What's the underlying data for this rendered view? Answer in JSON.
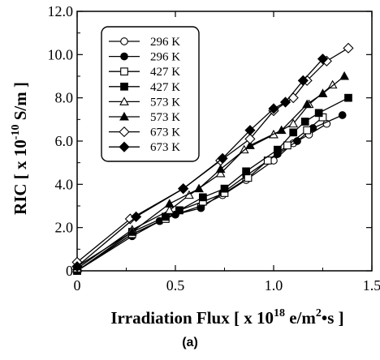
{
  "chart_data": {
    "type": "scatter",
    "xlabel": "Irradiation Flux [ x 10",
    "xlabel_sup1": "18",
    "xlabel_mid": " e/m",
    "xlabel_sup2": "2",
    "xlabel_end": "•s ]",
    "ylabel": "RIC [ x 10",
    "ylabel_sup": "-10",
    "ylabel_end": " S/m ]",
    "xlim": [
      0,
      1.5
    ],
    "ylim": [
      0,
      12
    ],
    "xticks": [
      0,
      0.5,
      1.0,
      1.5
    ],
    "xtick_labels": [
      "0",
      "0.5",
      "1.0",
      "1.5"
    ],
    "yticks": [
      0,
      2,
      4,
      6,
      8,
      10,
      12
    ],
    "ytick_labels": [
      "0",
      "2.0",
      "4.0",
      "6.0",
      "8.0",
      "10.0",
      "12.0"
    ],
    "grid": false,
    "legend_position": "top-left",
    "panel_label": "(a)",
    "series": [
      {
        "name": "296 K",
        "marker": "circle-open",
        "x": [
          0,
          0.28,
          0.42,
          0.5,
          0.63,
          0.74,
          0.86,
          1.0,
          1.1,
          1.18,
          1.27
        ],
        "y": [
          0,
          1.7,
          2.3,
          2.6,
          3.0,
          3.5,
          4.2,
          5.1,
          5.9,
          6.3,
          6.8
        ]
      },
      {
        "name": "296 K",
        "marker": "circle-filled",
        "x": [
          0,
          0.28,
          0.42,
          0.5,
          0.63,
          0.74,
          0.86,
          1.02,
          1.12,
          1.2,
          1.35
        ],
        "y": [
          0,
          1.6,
          2.3,
          2.6,
          2.9,
          3.6,
          4.4,
          5.4,
          6.0,
          6.6,
          7.2
        ]
      },
      {
        "name": "427 K",
        "marker": "square-open",
        "x": [
          0,
          0.28,
          0.45,
          0.52,
          0.64,
          0.75,
          0.87,
          0.97,
          1.07,
          1.17,
          1.25
        ],
        "y": [
          0,
          1.7,
          2.4,
          2.8,
          3.2,
          3.6,
          4.3,
          5.1,
          5.8,
          6.5,
          7.1
        ]
      },
      {
        "name": "427 K",
        "marker": "square-filled",
        "x": [
          0,
          0.28,
          0.45,
          0.52,
          0.64,
          0.75,
          0.86,
          1.02,
          1.1,
          1.16,
          1.23,
          1.38
        ],
        "y": [
          0,
          1.8,
          2.5,
          2.8,
          3.4,
          3.8,
          4.6,
          5.6,
          6.4,
          6.9,
          7.3,
          8.0
        ]
      },
      {
        "name": "573 K",
        "marker": "triangle-open",
        "x": [
          0,
          0.28,
          0.47,
          0.57,
          0.73,
          0.85,
          1.0,
          1.1,
          1.18,
          1.3
        ],
        "y": [
          0.1,
          1.9,
          2.8,
          3.5,
          4.5,
          5.6,
          6.3,
          6.8,
          7.7,
          8.6
        ]
      },
      {
        "name": "573 K",
        "marker": "triangle-filled",
        "x": [
          0,
          0.28,
          0.47,
          0.62,
          0.73,
          0.88,
          1.04,
          1.17,
          1.25,
          1.36
        ],
        "y": [
          0.2,
          1.8,
          3.1,
          3.8,
          4.7,
          5.8,
          6.5,
          7.7,
          8.2,
          9.0
        ]
      },
      {
        "name": "673 K",
        "marker": "diamond-open",
        "x": [
          0,
          0.27,
          0.54,
          0.73,
          0.88,
          1.0,
          1.1,
          1.17,
          1.27,
          1.38
        ],
        "y": [
          0.4,
          2.4,
          3.8,
          5.1,
          6.1,
          7.4,
          8.0,
          8.8,
          9.7,
          10.3
        ]
      },
      {
        "name": "673 K",
        "marker": "diamond-filled",
        "x": [
          0,
          0.3,
          0.54,
          0.74,
          0.88,
          1.0,
          1.06,
          1.15,
          1.25
        ],
        "y": [
          0.2,
          2.5,
          3.8,
          5.2,
          6.5,
          7.5,
          7.8,
          8.8,
          9.8
        ]
      }
    ]
  }
}
